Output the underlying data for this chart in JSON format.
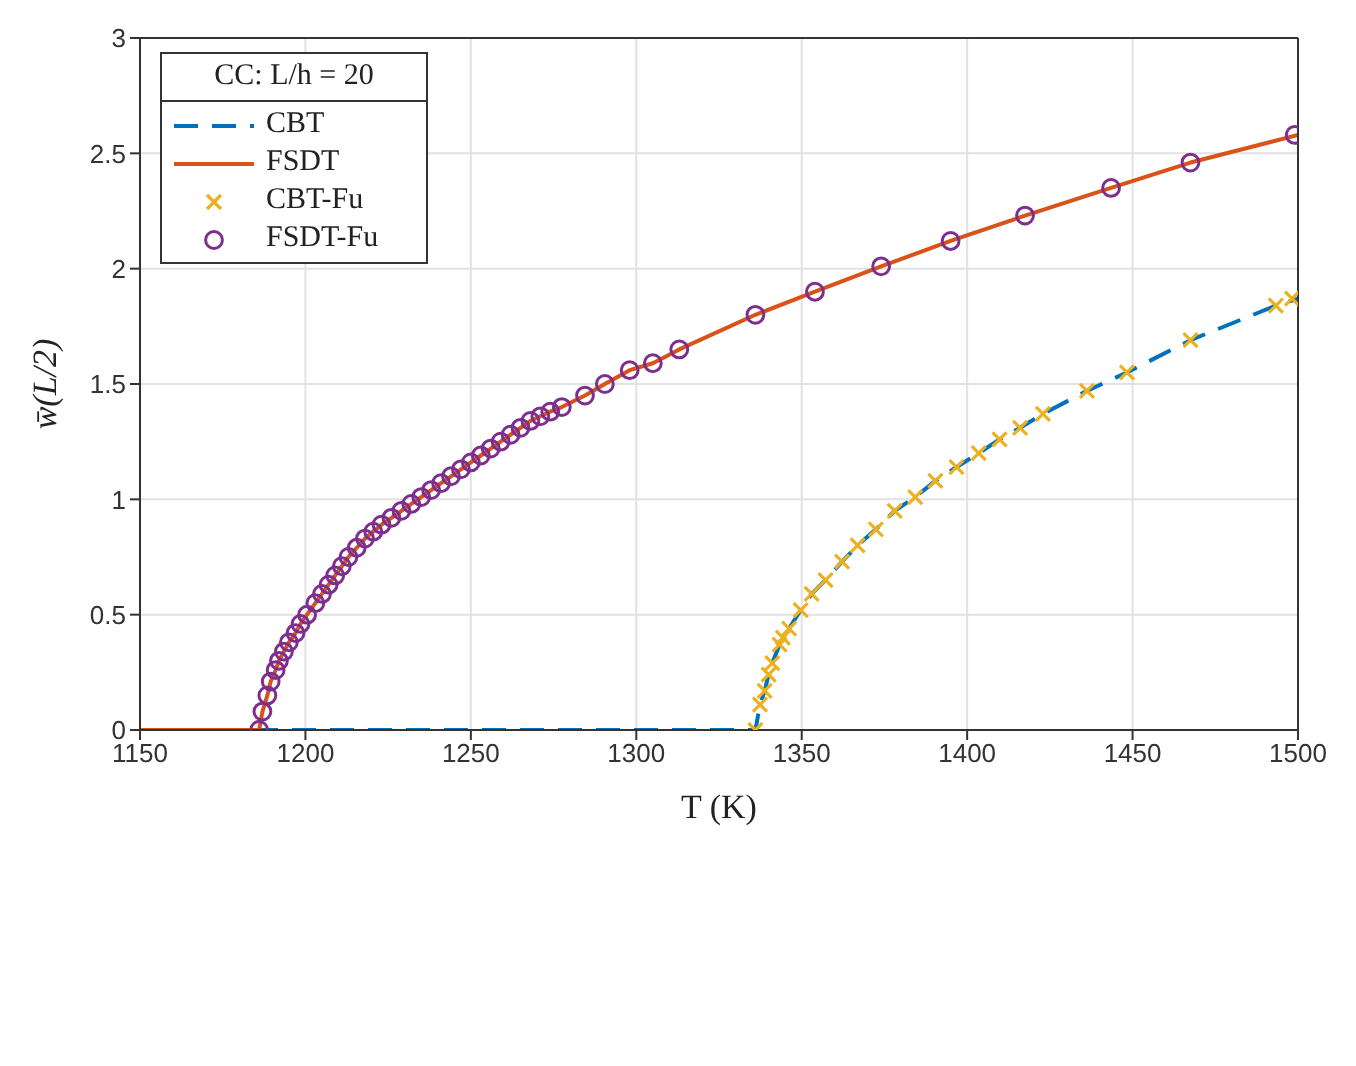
{
  "chart_data": {
    "type": "line",
    "xlabel": "T (K)",
    "ylabel": "w̄(L/2)",
    "legend_title": "CC: L/h = 20",
    "legend": "top left",
    "grid": true,
    "xlim": [
      1150,
      1500
    ],
    "xticks": [
      1150,
      1200,
      1250,
      1300,
      1350,
      1400,
      1450,
      1500
    ],
    "ylim": [
      0,
      3
    ],
    "yticks": [
      0,
      0.5,
      1,
      1.5,
      2,
      2.5,
      3
    ],
    "series": [
      {
        "name": "CBT",
        "type": "line",
        "color": "#0072bd",
        "line_style": "dashed",
        "marker": "none",
        "x": [
          1150,
          1336,
          1337.4,
          1338.8,
          1340,
          1341.1,
          1343.3,
          1344.3,
          1346.2,
          1349.7,
          1353,
          1357.2,
          1362.2,
          1366.9,
          1372.4,
          1378.1,
          1384.3,
          1390.4,
          1396.8,
          1403.5,
          1409.8,
          1416,
          1422.9,
          1436.2,
          1448.3,
          1467.5,
          1493.3,
          1500
        ],
        "values": [
          0,
          0,
          0.11,
          0.17,
          0.24,
          0.29,
          0.37,
          0.4,
          0.44,
          0.52,
          0.59,
          0.65,
          0.73,
          0.8,
          0.87,
          0.95,
          1.01,
          1.08,
          1.14,
          1.2,
          1.26,
          1.31,
          1.37,
          1.47,
          1.55,
          1.69,
          1.84,
          1.87
        ]
      },
      {
        "name": "FSDT",
        "type": "line",
        "color": "#d95319",
        "line_style": "solid",
        "marker": "none",
        "x": [
          1150,
          1186,
          1187,
          1188.5,
          1189.5,
          1191,
          1192,
          1193.5,
          1195,
          1197,
          1198.5,
          1200.5,
          1203,
          1205,
          1207,
          1209,
          1211,
          1213,
          1215.5,
          1218,
          1220.5,
          1223,
          1226,
          1229,
          1232,
          1235,
          1238,
          1241,
          1244,
          1247,
          1250,
          1253,
          1256,
          1259,
          1262,
          1265,
          1268,
          1271,
          1274,
          1277.5,
          1284.5,
          1290.5,
          1298,
          1305,
          1313,
          1336,
          1354,
          1374,
          1395,
          1417.5,
          1443.5,
          1467.5,
          1500
        ],
        "values": [
          0,
          0,
          0.08,
          0.15,
          0.21,
          0.26,
          0.3,
          0.34,
          0.38,
          0.42,
          0.46,
          0.5,
          0.55,
          0.59,
          0.63,
          0.67,
          0.71,
          0.75,
          0.79,
          0.83,
          0.86,
          0.89,
          0.92,
          0.95,
          0.98,
          1.01,
          1.04,
          1.07,
          1.1,
          1.13,
          1.16,
          1.19,
          1.22,
          1.25,
          1.28,
          1.31,
          1.34,
          1.36,
          1.38,
          1.4,
          1.45,
          1.5,
          1.56,
          1.59,
          1.65,
          1.8,
          1.9,
          2.01,
          2.12,
          2.23,
          2.35,
          2.46,
          2.58
        ]
      },
      {
        "name": "CBT-Fu",
        "type": "scatter",
        "color": "#edb120",
        "marker": "cross",
        "x": [
          1336,
          1337.4,
          1338.8,
          1340,
          1341.1,
          1343.3,
          1344.3,
          1346.2,
          1349.7,
          1353,
          1357.2,
          1362.2,
          1366.9,
          1372.4,
          1378.1,
          1384.3,
          1390.4,
          1396.8,
          1403.5,
          1409.8,
          1416,
          1422.9,
          1436.2,
          1448.3,
          1467.5,
          1493.3,
          1498.2
        ],
        "values": [
          0,
          0.11,
          0.17,
          0.24,
          0.29,
          0.37,
          0.4,
          0.44,
          0.52,
          0.59,
          0.65,
          0.73,
          0.8,
          0.87,
          0.95,
          1.01,
          1.08,
          1.14,
          1.2,
          1.26,
          1.31,
          1.37,
          1.47,
          1.55,
          1.69,
          1.84,
          1.87
        ]
      },
      {
        "name": "FSDT-Fu",
        "type": "scatter",
        "color": "#7e2f8e",
        "marker": "circle",
        "x": [
          1186,
          1187,
          1188.5,
          1189.5,
          1191,
          1192,
          1193.5,
          1195,
          1197,
          1198.5,
          1200.5,
          1203,
          1205,
          1207,
          1209,
          1211,
          1213,
          1215.5,
          1218,
          1220.5,
          1223,
          1226,
          1229,
          1232,
          1235,
          1238,
          1241,
          1244,
          1247,
          1250,
          1253,
          1256,
          1259,
          1262,
          1265,
          1268,
          1271,
          1274,
          1277.5,
          1284.5,
          1290.5,
          1298,
          1305,
          1313,
          1336,
          1354,
          1374,
          1395,
          1417.5,
          1443.5,
          1467.5,
          1499
        ],
        "values": [
          0,
          0.08,
          0.15,
          0.21,
          0.26,
          0.3,
          0.34,
          0.38,
          0.42,
          0.46,
          0.5,
          0.55,
          0.59,
          0.63,
          0.67,
          0.71,
          0.75,
          0.79,
          0.83,
          0.86,
          0.89,
          0.92,
          0.95,
          0.98,
          1.01,
          1.04,
          1.07,
          1.1,
          1.13,
          1.16,
          1.19,
          1.22,
          1.25,
          1.28,
          1.31,
          1.34,
          1.36,
          1.38,
          1.4,
          1.45,
          1.5,
          1.56,
          1.59,
          1.65,
          1.8,
          1.9,
          2.01,
          2.12,
          2.23,
          2.35,
          2.46,
          2.58
        ]
      }
    ]
  }
}
